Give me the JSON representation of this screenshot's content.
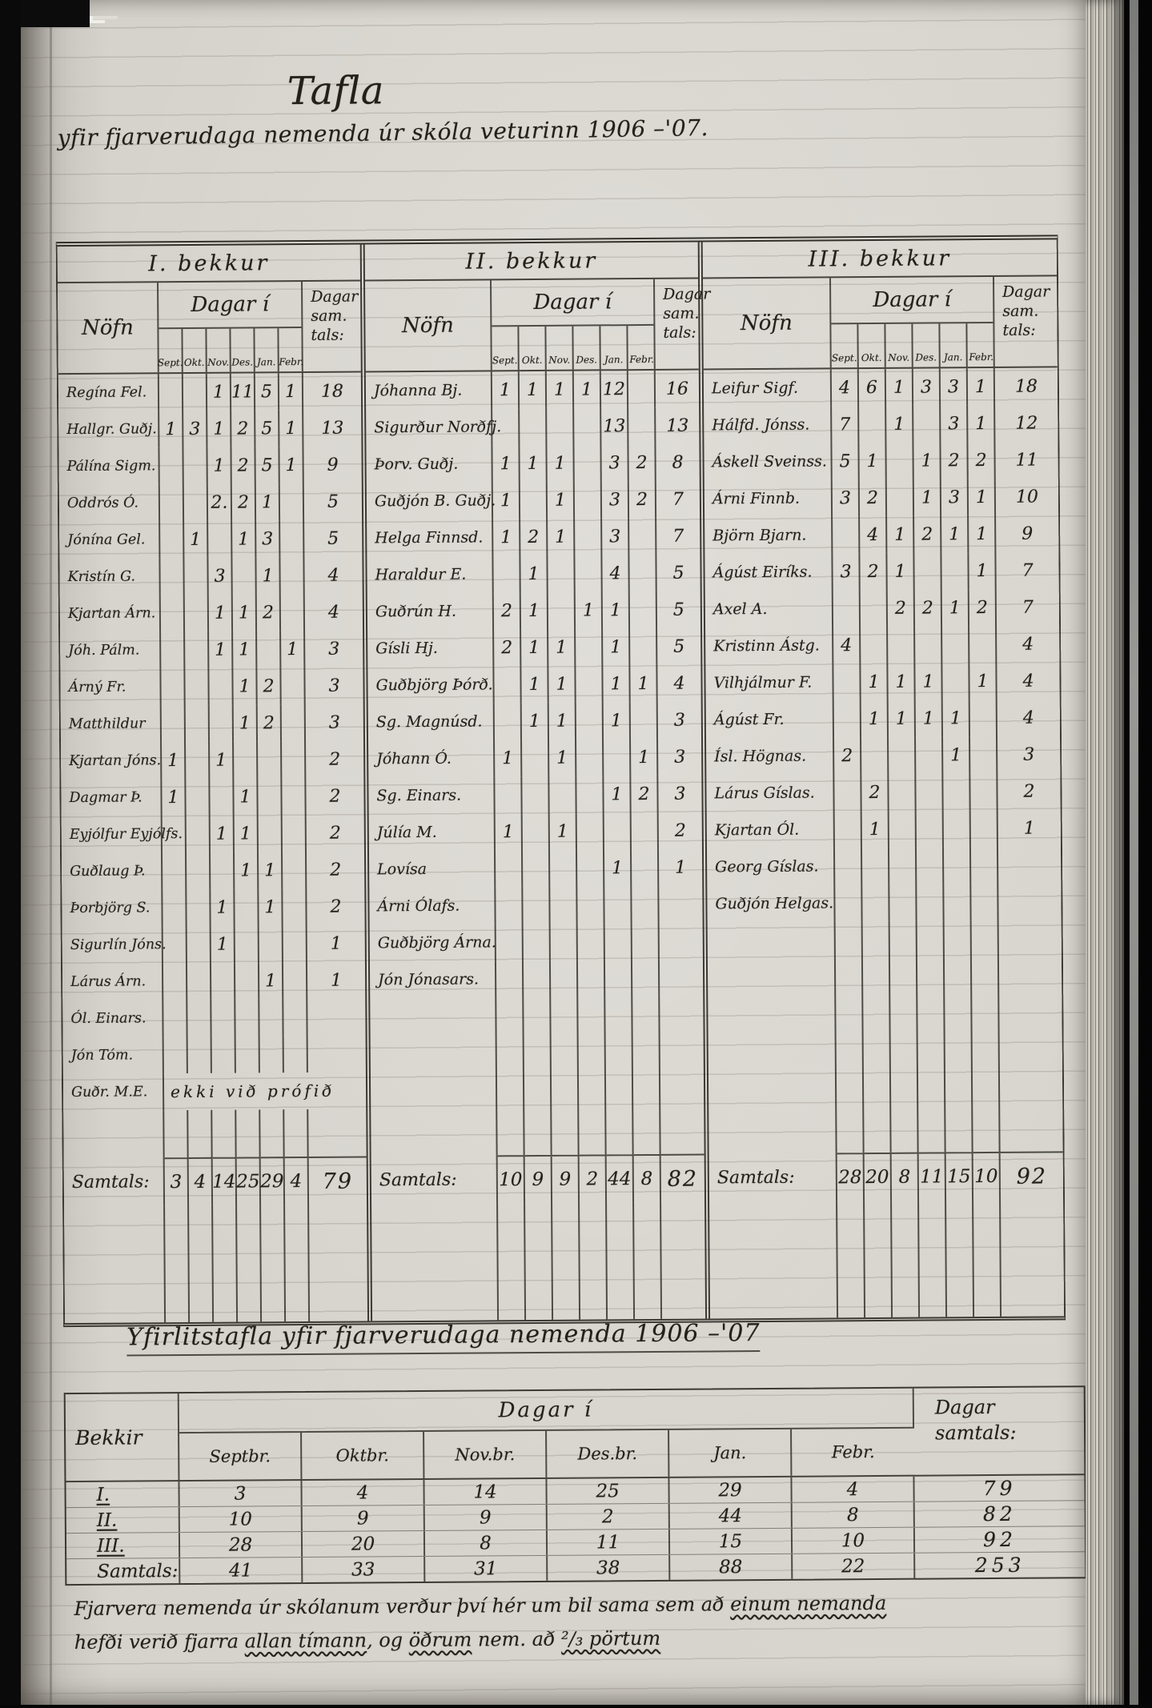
{
  "page": {
    "title": "Tafla",
    "subtitle": "yfir fjarverudaga nemenda úr skóla veturinn 1906 –'07.",
    "footnote": {
      "lines": [
        [
          {
            "text": "Fjarvera nemenda úr skólanum verður því hér um bil sama sem að "
          },
          {
            "text": "einum nemanda",
            "underline": true
          }
        ],
        [
          {
            "text": "hefði verið fjarra "
          },
          {
            "text": "allan tímann",
            "underline": true
          },
          {
            "text": ", og "
          },
          {
            "text": "öðrum",
            "underline": true
          },
          {
            "text": " nem. að "
          },
          {
            "text": "²/₃ pörtum",
            "underline": true
          }
        ]
      ]
    }
  },
  "main_table": {
    "col_headers": {
      "name": "Nöfn",
      "days_in": "Dagar í",
      "total_lines": [
        "Dagar",
        "sam.",
        "tals:"
      ]
    },
    "months": [
      "Sept.",
      "Okt.",
      "Nov.",
      "Des.",
      "Jan.",
      "Febr."
    ],
    "samtals_label": "Samtals:",
    "sections": [
      {
        "heading": "I. bekkur",
        "rows": [
          {
            "name": "Regína Fel.",
            "days": [
              "",
              "",
              "1",
              "11",
              "5",
              "1"
            ],
            "total": "18"
          },
          {
            "name": "Hallgr. Guðj.",
            "days": [
              "1",
              "3",
              "1",
              "2",
              "5",
              "1"
            ],
            "total": "13"
          },
          {
            "name": "Pálína Sigm.",
            "days": [
              "",
              "",
              "1",
              "2",
              "5",
              "1"
            ],
            "total": "9"
          },
          {
            "name": "Oddrós Ó.",
            "days": [
              "",
              "",
              "2.",
              "2",
              "1",
              ""
            ],
            "total": "5"
          },
          {
            "name": "Jónína Gel.",
            "days": [
              "",
              "1",
              "",
              "1",
              "3",
              ""
            ],
            "total": "5"
          },
          {
            "name": "Kristín G.",
            "days": [
              "",
              "",
              "3",
              "",
              "1",
              ""
            ],
            "total": "4"
          },
          {
            "name": "Kjartan Árn.",
            "days": [
              "",
              "",
              "1",
              "1",
              "2",
              ""
            ],
            "total": "4"
          },
          {
            "name": "Jóh. Pálm.",
            "days": [
              "",
              "",
              "1",
              "1",
              "",
              "1"
            ],
            "total": "3"
          },
          {
            "name": "Árný Fr.",
            "days": [
              "",
              "",
              "",
              "1",
              "2",
              ""
            ],
            "total": "3"
          },
          {
            "name": "Matthildur",
            "days": [
              "",
              "",
              "",
              "1",
              "2",
              ""
            ],
            "total": "3"
          },
          {
            "name": "Kjartan Jóns.",
            "days": [
              "1",
              "",
              "1",
              "",
              "",
              ""
            ],
            "total": "2"
          },
          {
            "name": "Dagmar Þ.",
            "days": [
              "1",
              "",
              "",
              "1",
              "",
              ""
            ],
            "total": "2"
          },
          {
            "name": "Eyjólfur Eyjólfs.",
            "days": [
              "",
              "",
              "1",
              "1",
              "",
              ""
            ],
            "total": "2"
          },
          {
            "name": "Guðlaug Þ.",
            "days": [
              "",
              "",
              "",
              "1",
              "1",
              ""
            ],
            "total": "2"
          },
          {
            "name": "Þorbjörg S.",
            "days": [
              "",
              "",
              "1",
              "",
              "1",
              ""
            ],
            "total": "2"
          },
          {
            "name": "Sigurlín Jóns.",
            "days": [
              "",
              "",
              "1",
              "",
              "",
              ""
            ],
            "total": "1"
          },
          {
            "name": "Lárus Árn.",
            "days": [
              "",
              "",
              "",
              "",
              "1",
              ""
            ],
            "total": "1"
          },
          {
            "name": "Ól. Einars.",
            "days": [
              "",
              "",
              "",
              "",
              "",
              ""
            ],
            "total": ""
          },
          {
            "name": "Jón Tóm.",
            "days": [
              "",
              "",
              "",
              "",
              "",
              ""
            ],
            "total": ""
          },
          {
            "name": "Guðr. M.E.",
            "note": "ekki við prófið"
          }
        ],
        "samtals": {
          "days": [
            "3",
            "4",
            "14",
            "25",
            "29",
            "4"
          ],
          "total": "79"
        }
      },
      {
        "heading": "II. bekkur",
        "rows": [
          {
            "name": "Jóhanna Bj.",
            "days": [
              "1",
              "1",
              "1",
              "1",
              "12",
              ""
            ],
            "total": "16"
          },
          {
            "name": "Sigurður Norðfj.",
            "days": [
              "",
              "",
              "",
              "",
              "13",
              ""
            ],
            "total": "13"
          },
          {
            "name": "Þorv. Guðj.",
            "days": [
              "1",
              "1",
              "1",
              "",
              "3",
              "2"
            ],
            "total": "8"
          },
          {
            "name": "Guðjón B. Guðj.",
            "days": [
              "1",
              "",
              "1",
              "",
              "3",
              "2"
            ],
            "total": "7"
          },
          {
            "name": "Helga Finnsd.",
            "days": [
              "1",
              "2",
              "1",
              "",
              "3",
              ""
            ],
            "total": "7"
          },
          {
            "name": "Haraldur E.",
            "days": [
              "",
              "1",
              "",
              "",
              "4",
              ""
            ],
            "total": "5"
          },
          {
            "name": "Guðrún H.",
            "days": [
              "2",
              "1",
              "",
              "1",
              "1",
              ""
            ],
            "total": "5"
          },
          {
            "name": "Gísli Hj.",
            "days": [
              "2",
              "1",
              "1",
              "",
              "1",
              ""
            ],
            "total": "5"
          },
          {
            "name": "Guðbjörg Þórð.",
            "days": [
              "",
              "1",
              "1",
              "",
              "1",
              "1"
            ],
            "total": "4"
          },
          {
            "name": "Sg. Magnúsd.",
            "days": [
              "",
              "1",
              "1",
              "",
              "1",
              ""
            ],
            "total": "3"
          },
          {
            "name": "Jóhann Ó.",
            "days": [
              "1",
              "",
              "1",
              "",
              "",
              "1"
            ],
            "total": "3"
          },
          {
            "name": "Sg. Einars.",
            "days": [
              "",
              "",
              "",
              "",
              "1",
              "2"
            ],
            "total": "3"
          },
          {
            "name": "Júlía M.",
            "days": [
              "1",
              "",
              "1",
              "",
              "",
              ""
            ],
            "total": "2"
          },
          {
            "name": "Lovísa",
            "days": [
              "",
              "",
              "",
              "",
              "1",
              ""
            ],
            "total": "1"
          },
          {
            "name": "Árni Ólafs.",
            "days": [
              "",
              "",
              "",
              "",
              "",
              ""
            ],
            "total": ""
          },
          {
            "name": "Guðbjörg Árna.",
            "days": [
              "",
              "",
              "",
              "",
              "",
              ""
            ],
            "total": ""
          },
          {
            "name": "Jón Jónasars.",
            "days": [
              "",
              "",
              "",
              "",
              "",
              ""
            ],
            "total": ""
          }
        ],
        "samtals": {
          "days": [
            "10",
            "9",
            "9",
            "2",
            "44",
            "8"
          ],
          "total": "82"
        }
      },
      {
        "heading": "III. bekkur",
        "rows": [
          {
            "name": "Leifur Sigf.",
            "days": [
              "4",
              "6",
              "1",
              "3",
              "3",
              "1"
            ],
            "total": "18"
          },
          {
            "name": "Hálfd. Jónss.",
            "days": [
              "7",
              "",
              "1",
              "",
              "3",
              "1"
            ],
            "total": "12"
          },
          {
            "name": "Áskell Sveinss.",
            "days": [
              "5",
              "1",
              "",
              "1",
              "2",
              "2"
            ],
            "total": "11"
          },
          {
            "name": "Árni Finnb.",
            "days": [
              "3",
              "2",
              "",
              "1",
              "3",
              "1"
            ],
            "total": "10"
          },
          {
            "name": "Björn Bjarn.",
            "days": [
              "",
              "4",
              "1",
              "2",
              "1",
              "1"
            ],
            "total": "9"
          },
          {
            "name": "Ágúst Eiríks.",
            "days": [
              "3",
              "2",
              "1",
              "",
              "",
              "1"
            ],
            "total": "7"
          },
          {
            "name": "Axel A.",
            "days": [
              "",
              "",
              "2",
              "2",
              "1",
              "2"
            ],
            "total": "7"
          },
          {
            "name": "Kristinn Ástg.",
            "days": [
              "4",
              "",
              "",
              "",
              "",
              ""
            ],
            "total": "4"
          },
          {
            "name": "Vilhjálmur F.",
            "days": [
              "",
              "1",
              "1",
              "1",
              "",
              "1"
            ],
            "total": "4"
          },
          {
            "name": "Ágúst Fr.",
            "days": [
              "",
              "1",
              "1",
              "1",
              "1",
              ""
            ],
            "total": "4"
          },
          {
            "name": "Ísl. Högnas.",
            "days": [
              "2",
              "",
              "",
              "",
              "1",
              ""
            ],
            "total": "3"
          },
          {
            "name": "Lárus Gíslas.",
            "days": [
              "",
              "2",
              "",
              "",
              "",
              ""
            ],
            "total": "2"
          },
          {
            "name": "Kjartan Ól.",
            "days": [
              "",
              "1",
              "",
              "",
              "",
              ""
            ],
            "total": "1"
          },
          {
            "name": "Georg Gíslas.",
            "days": [
              "",
              "",
              "",
              "",
              "",
              ""
            ],
            "total": ""
          },
          {
            "name": "Guðjón Helgas.",
            "days": [
              "",
              "",
              "",
              "",
              "",
              ""
            ],
            "total": ""
          }
        ],
        "samtals": {
          "days": [
            "28",
            "20",
            "8",
            "11",
            "15",
            "10"
          ],
          "total": "92"
        }
      }
    ]
  },
  "summary_table": {
    "title": "Yfirlitstafla yfir fjarverudaga nemenda 1906 –'07",
    "class_header": "Bekkir",
    "days_in_header": "Dagar í",
    "total_header_lines": [
      "Dagar",
      "samtals:"
    ],
    "months": [
      "Septbr.",
      "Oktbr.",
      "Nov.br.",
      "Des.br.",
      "Jan.",
      "Febr."
    ],
    "rows": [
      {
        "label": "I.",
        "values": [
          "3",
          "4",
          "14",
          "25",
          "29",
          "4"
        ],
        "total": "79"
      },
      {
        "label": "II.",
        "values": [
          "10",
          "9",
          "9",
          "2",
          "44",
          "8"
        ],
        "total": "82"
      },
      {
        "label": "III.",
        "values": [
          "28",
          "20",
          "8",
          "11",
          "15",
          "10"
        ],
        "total": "92"
      },
      {
        "label": "Samtals:",
        "values": [
          "41",
          "33",
          "31",
          "38",
          "88",
          "22"
        ],
        "total": "253"
      }
    ]
  }
}
